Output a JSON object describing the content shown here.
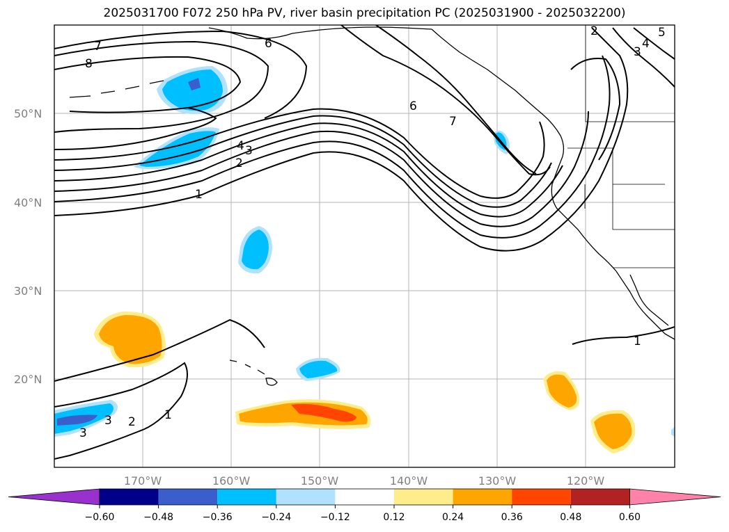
{
  "title": "2025031700 F072 250 hPa PV, river basin precipitation PC (2025031900 - 2025032200)",
  "lat_labels": [
    "50°N",
    "40°N",
    "30°N",
    "20°N"
  ],
  "lon_labels": [
    "170°W",
    "160°W",
    "150°W",
    "140°W",
    "130°W",
    "120°W"
  ],
  "contour_labels": [
    "7",
    "8",
    "6",
    "6",
    "7",
    "4",
    "3",
    "2",
    "1",
    "2",
    "3",
    "4",
    "5",
    "1",
    "2",
    "1",
    "3",
    "3"
  ],
  "colorbar": {
    "ticks": [
      "−0.60",
      "−0.48",
      "−0.36",
      "−0.24",
      "−0.12",
      "0.12",
      "0.24",
      "0.36",
      "0.48",
      "0.60"
    ],
    "colors": [
      "#9932cc",
      "#00008b",
      "#3a5fcd",
      "#00bfff",
      "#b0e2ff",
      "#ffffff",
      "#ffec8b",
      "#ffa500",
      "#ff4500",
      "#b22222",
      "#ff82ab"
    ]
  }
}
